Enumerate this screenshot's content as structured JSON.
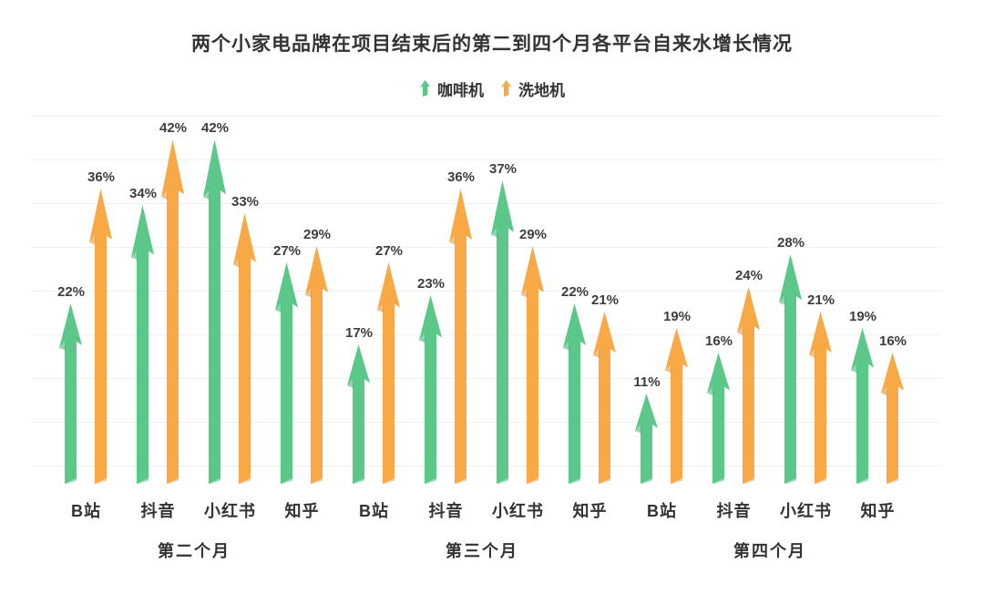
{
  "title": "两个小家电品牌在项目结束后的第二到四个月各平台自来水增长情况",
  "legend": {
    "items": [
      {
        "label": "咖啡机",
        "color_key": "coffee"
      },
      {
        "label": "洗地机",
        "color_key": "washer"
      }
    ]
  },
  "colors": {
    "coffee": "#5BC88A",
    "coffee_dark": "#3EAE71",
    "washer": "#F8A844",
    "washer_dark": "#E2902F",
    "text": "#333333",
    "value_label": "#3d3d3d",
    "gridline": "#efefef",
    "background": "#ffffff"
  },
  "chart_data": {
    "type": "bar",
    "title": "两个小家电品牌在项目结束后的第二到四个月各平台自来水增长情况",
    "unit": "%",
    "value_labels": true,
    "grid": true,
    "legend_position": "top",
    "ylim": [
      0,
      45
    ],
    "categories_per_month": [
      "B站",
      "抖音",
      "小红书",
      "知乎"
    ],
    "months": [
      {
        "label": "第二个月",
        "categories": [
          "B站",
          "抖音",
          "小红书",
          "知乎"
        ],
        "series": [
          {
            "name": "咖啡机",
            "values": [
              22,
              34,
              42,
              27
            ]
          },
          {
            "name": "洗地机",
            "values": [
              36,
              42,
              33,
              29
            ]
          }
        ]
      },
      {
        "label": "第三个月",
        "categories": [
          "B站",
          "抖音",
          "小红书",
          "知乎"
        ],
        "series": [
          {
            "name": "咖啡机",
            "values": [
              17,
              23,
              37,
              22
            ]
          },
          {
            "name": "洗地机",
            "values": [
              27,
              36,
              29,
              21
            ]
          }
        ]
      },
      {
        "label": "第四个月",
        "categories": [
          "B站",
          "抖音",
          "小红书",
          "知乎"
        ],
        "series": [
          {
            "name": "咖啡机",
            "values": [
              11,
              16,
              28,
              19
            ]
          },
          {
            "name": "洗地机",
            "values": [
              19,
              24,
              21,
              16
            ]
          }
        ]
      }
    ]
  }
}
